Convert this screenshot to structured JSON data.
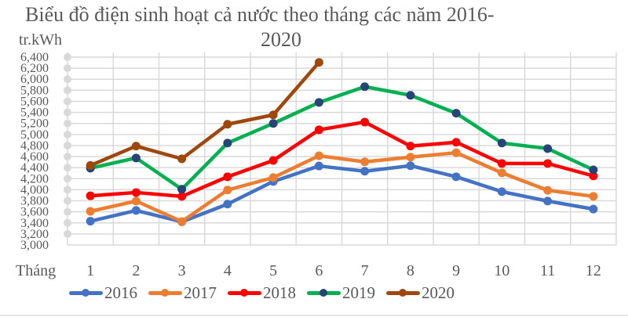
{
  "chart_data": {
    "type": "line",
    "title": "Biểu đồ điện sinh hoạt cả nước theo tháng các năm 2016-2020",
    "title_lines": [
      "Biểu đồ điện sinh hoạt cả nước theo tháng các năm 2016-",
      "2020"
    ],
    "ylabel": "tr.kWh",
    "xlabel": "Tháng",
    "categories": [
      "1",
      "2",
      "3",
      "4",
      "5",
      "6",
      "7",
      "8",
      "9",
      "10",
      "11",
      "12"
    ],
    "ylim": [
      3000,
      6400
    ],
    "yticks": [
      "6,400",
      "6,200",
      "6,000",
      "5,800",
      "5,600",
      "5,400",
      "5,200",
      "5,000",
      "4,800",
      "4,600",
      "4,400",
      "4,200",
      "4,000",
      "3,800",
      "3,600",
      "3,400",
      "3,200",
      "3,000"
    ],
    "grid": true,
    "legend_position": "bottom",
    "series": [
      {
        "name": "2016",
        "color": "#4472C4",
        "marker": "#4472C4",
        "values": [
          3430,
          3625,
          3420,
          3740,
          4150,
          4430,
          4335,
          4435,
          4235,
          3965,
          3795,
          3650
        ]
      },
      {
        "name": "2017",
        "color": "#ED7D31",
        "marker": "#ED7D31",
        "values": [
          3610,
          3795,
          3425,
          3995,
          4220,
          4615,
          4505,
          4590,
          4670,
          4305,
          3990,
          3880
        ]
      },
      {
        "name": "2018",
        "color": "#FF0000",
        "marker": "#FF0000",
        "values": [
          3890,
          3950,
          3880,
          4235,
          4530,
          5085,
          5225,
          4790,
          4860,
          4475,
          4475,
          4250
        ]
      },
      {
        "name": "2019",
        "color": "#00B050",
        "marker": "#264478",
        "values": [
          4390,
          4575,
          4010,
          4845,
          5200,
          5580,
          5865,
          5710,
          5385,
          4845,
          4745,
          4360
        ]
      },
      {
        "name": "2020",
        "color": "#9E480E",
        "marker": "#9E480E",
        "values": [
          4440,
          4790,
          4560,
          5185,
          5355,
          6305
        ]
      }
    ]
  }
}
